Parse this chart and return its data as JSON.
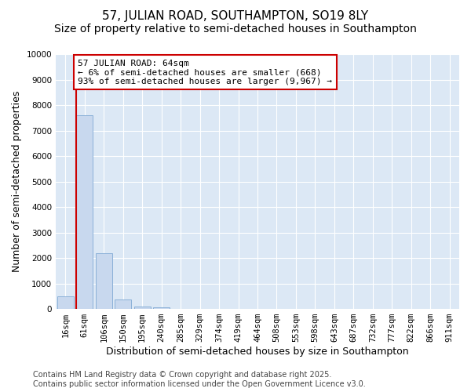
{
  "title_line1": "57, JULIAN ROAD, SOUTHAMPTON, SO19 8LY",
  "title_line2": "Size of property relative to semi-detached houses in Southampton",
  "xlabel": "Distribution of semi-detached houses by size in Southampton",
  "ylabel": "Number of semi-detached properties",
  "categories": [
    "16sqm",
    "61sqm",
    "106sqm",
    "150sqm",
    "195sqm",
    "240sqm",
    "285sqm",
    "329sqm",
    "374sqm",
    "419sqm",
    "464sqm",
    "508sqm",
    "553sqm",
    "598sqm",
    "643sqm",
    "687sqm",
    "732sqm",
    "777sqm",
    "822sqm",
    "866sqm",
    "911sqm"
  ],
  "values": [
    500,
    7600,
    2200,
    370,
    100,
    50,
    0,
    0,
    0,
    0,
    0,
    0,
    0,
    0,
    0,
    0,
    0,
    0,
    0,
    0,
    0
  ],
  "bar_color": "#c8d8ee",
  "bar_edge_color": "#8ab0d8",
  "vline_color": "#cc0000",
  "annotation_text": "57 JULIAN ROAD: 64sqm\n← 6% of semi-detached houses are smaller (668)\n93% of semi-detached houses are larger (9,967) →",
  "annotation_box_facecolor": "#ffffff",
  "annotation_box_edgecolor": "#cc0000",
  "ylim": [
    0,
    10000
  ],
  "yticks": [
    0,
    1000,
    2000,
    3000,
    4000,
    5000,
    6000,
    7000,
    8000,
    9000,
    10000
  ],
  "plot_bg_color": "#dce8f5",
  "fig_bg_color": "#ffffff",
  "grid_color": "#ffffff",
  "footer_line1": "Contains HM Land Registry data © Crown copyright and database right 2025.",
  "footer_line2": "Contains public sector information licensed under the Open Government Licence v3.0.",
  "title_fontsize": 11,
  "subtitle_fontsize": 10,
  "axis_label_fontsize": 9,
  "tick_fontsize": 7.5,
  "annotation_fontsize": 8,
  "footer_fontsize": 7
}
